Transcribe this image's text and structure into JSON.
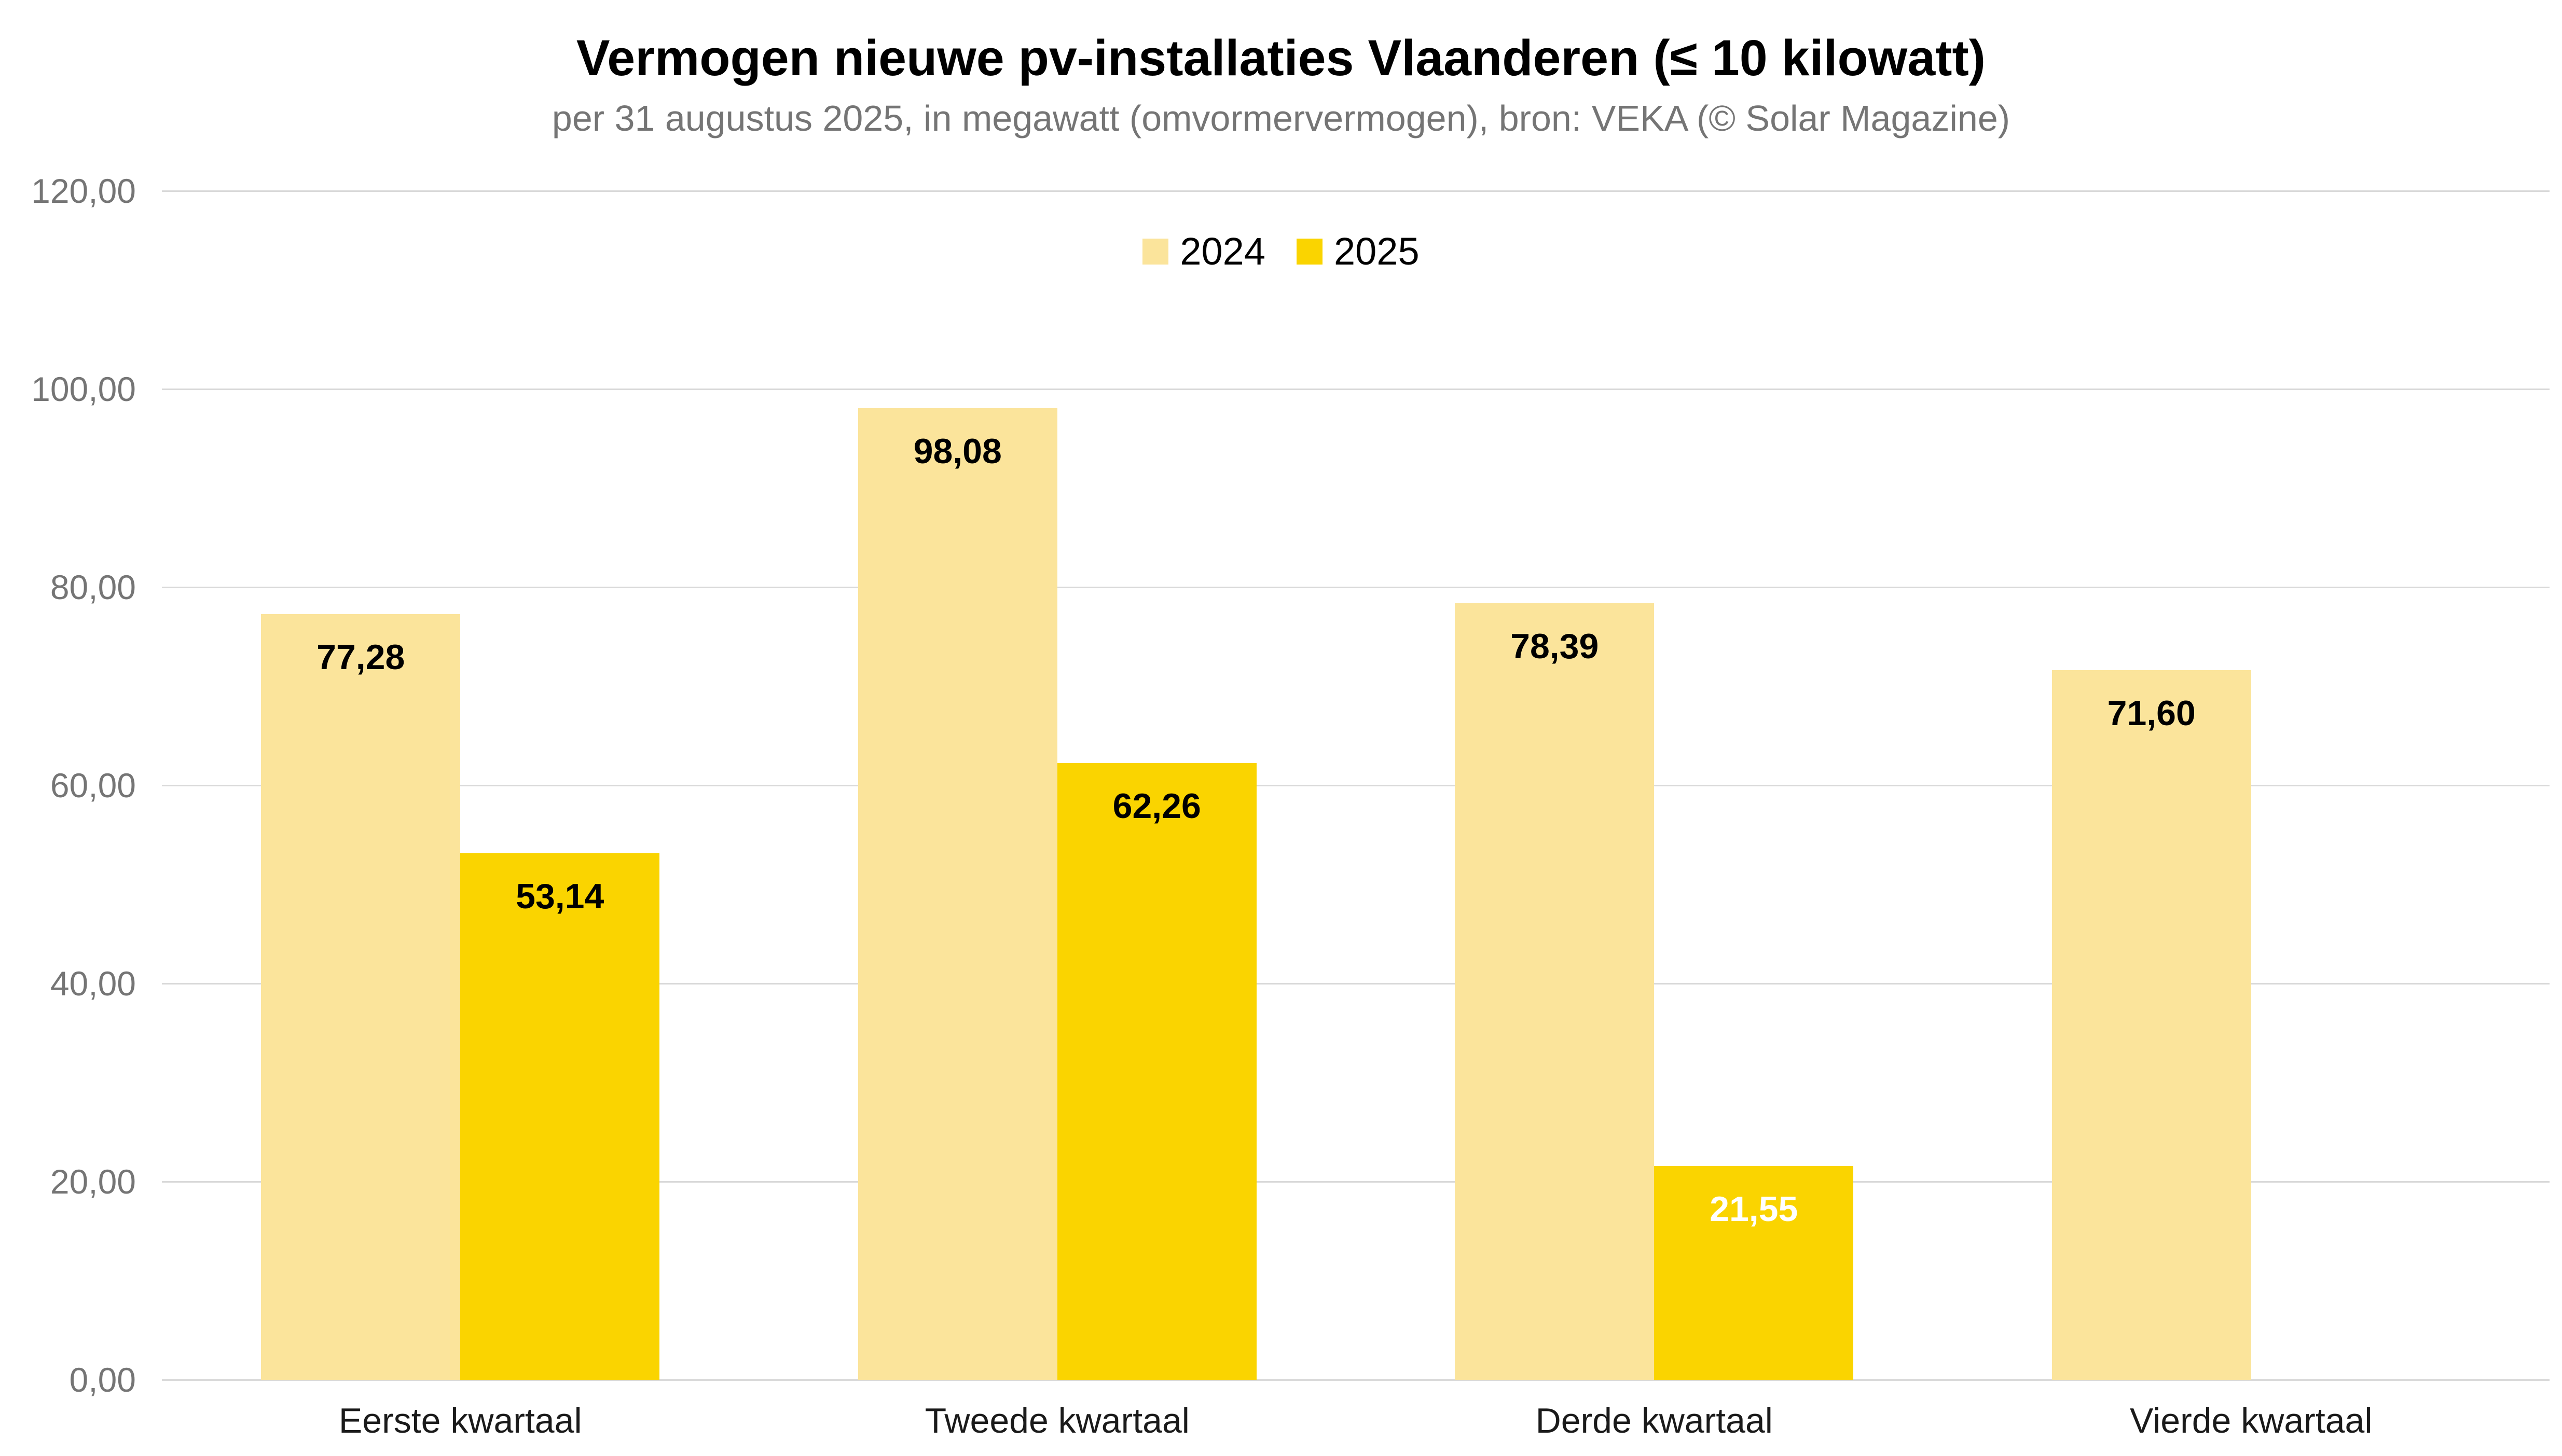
{
  "chart_data": {
    "type": "bar",
    "title": "Vermogen nieuwe pv-installaties Vlaanderen (≤ 10 kilowatt)",
    "subtitle": "per 31 augustus 2025, in megawatt (omvormervermogen), bron: VEKA (© Solar Magazine)",
    "categories": [
      "Eerste kwartaal",
      "Tweede kwartaal",
      "Derde kwartaal",
      "Vierde kwartaal"
    ],
    "series": [
      {
        "name": "2024",
        "color": "#FBE49B",
        "values": [
          77.28,
          98.08,
          78.39,
          71.6
        ],
        "labels": [
          "77,28",
          "98,08",
          "78,39",
          "71,60"
        ],
        "label_colors": [
          "#000000",
          "#000000",
          "#000000",
          "#000000"
        ]
      },
      {
        "name": "2025",
        "color": "#FAD400",
        "values": [
          53.14,
          62.26,
          21.55,
          null
        ],
        "labels": [
          "53,14",
          "62,26",
          "21,55",
          null
        ],
        "label_colors": [
          "#000000",
          "#000000",
          "#ffffff",
          null
        ]
      }
    ],
    "xlabel": "",
    "ylabel": "",
    "ylim": [
      0,
      120
    ],
    "ytick_interval": 20,
    "ytick_labels": [
      "0,00",
      "20,00",
      "40,00",
      "60,00",
      "80,00",
      "100,00",
      "120,00"
    ],
    "grid": true,
    "legend_position": "top",
    "background_color": "#ffffff"
  }
}
